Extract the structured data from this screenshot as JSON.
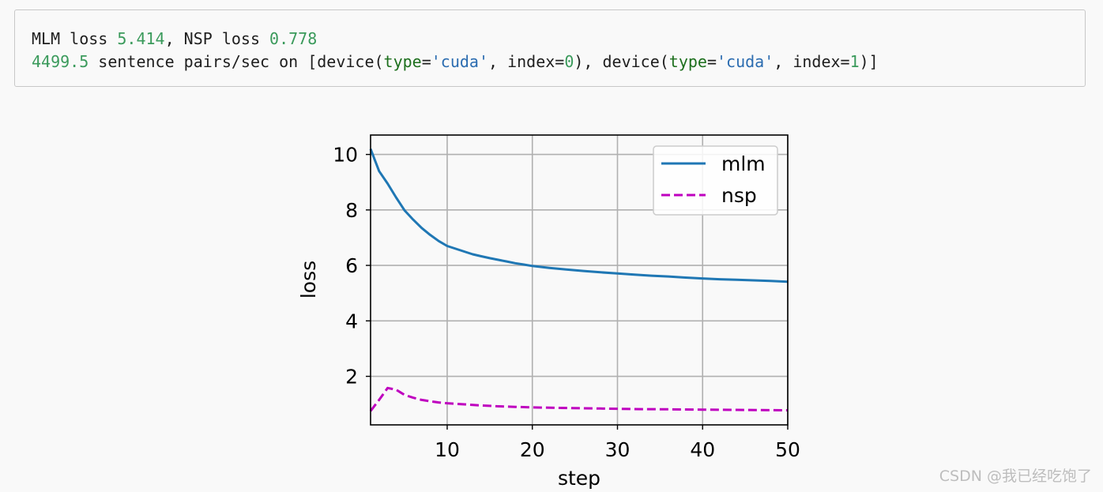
{
  "output": {
    "line1": {
      "a": "MLM loss ",
      "b": "5.414",
      "c": ", NSP loss ",
      "d": "0.778"
    },
    "line2": {
      "rate": "4499.5",
      "t1": " sentence pairs/sec on [device(",
      "k1": "type",
      "eq1": "=",
      "s1": "'cuda'",
      "t2": ", index=",
      "n1": "0",
      "t3": "), device(",
      "k2": "type",
      "eq2": "=",
      "s2": "'cuda'",
      "t4": ", index=",
      "n2": "1",
      "t5": ")]"
    }
  },
  "chart_data": {
    "type": "line",
    "xlabel": "step",
    "ylabel": "loss",
    "xlim": [
      1,
      50
    ],
    "ylim": [
      0.25,
      10.7
    ],
    "xticks": [
      10,
      20,
      30,
      40,
      50
    ],
    "yticks": [
      2,
      4,
      6,
      8,
      10
    ],
    "grid": true,
    "legend_position": "top-right",
    "series": [
      {
        "name": "mlm",
        "color": "#1f77b4",
        "style": "solid",
        "x": [
          1,
          2,
          3,
          4,
          5,
          6,
          7,
          8,
          9,
          10,
          11,
          12,
          13,
          14,
          15,
          16,
          17,
          18,
          19,
          20,
          22,
          24,
          26,
          28,
          30,
          32,
          34,
          36,
          38,
          40,
          42,
          44,
          46,
          48,
          50
        ],
        "y": [
          10.2,
          9.4,
          8.95,
          8.45,
          7.98,
          7.65,
          7.35,
          7.1,
          6.88,
          6.7,
          6.6,
          6.5,
          6.4,
          6.33,
          6.26,
          6.2,
          6.14,
          6.08,
          6.03,
          5.98,
          5.91,
          5.85,
          5.8,
          5.75,
          5.71,
          5.67,
          5.63,
          5.6,
          5.56,
          5.53,
          5.5,
          5.48,
          5.46,
          5.44,
          5.41
        ]
      },
      {
        "name": "nsp",
        "color": "#bf00bf",
        "style": "dashed",
        "x": [
          1,
          2,
          3,
          4,
          5,
          6,
          7,
          8,
          9,
          10,
          12,
          14,
          16,
          18,
          20,
          24,
          28,
          32,
          36,
          40,
          44,
          48,
          50
        ],
        "y": [
          0.75,
          1.15,
          1.58,
          1.52,
          1.33,
          1.23,
          1.15,
          1.1,
          1.06,
          1.03,
          0.99,
          0.95,
          0.92,
          0.9,
          0.88,
          0.86,
          0.84,
          0.82,
          0.81,
          0.8,
          0.79,
          0.78,
          0.778
        ]
      }
    ]
  },
  "watermark": "CSDN @我已经吃饱了"
}
